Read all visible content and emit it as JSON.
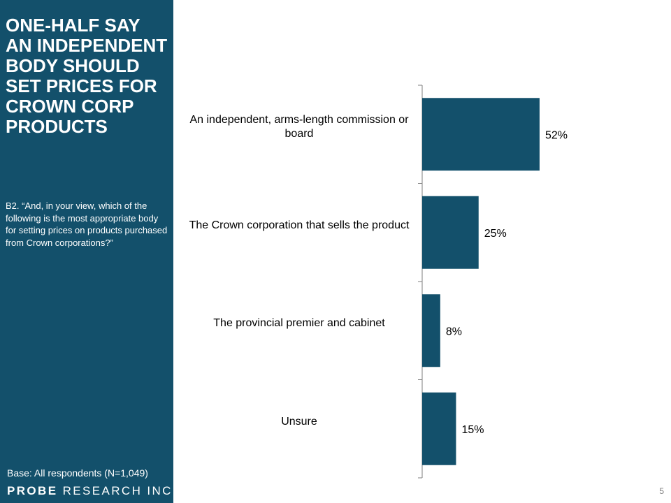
{
  "sidebar": {
    "headline": "ONE-HALF SAY AN INDEPENDENT BODY SHOULD SET PRICES FOR CROWN CORP PRODUCTS",
    "question": "B2. “And, in your view, which of the following is the most appropriate body for setting prices on products purchased from Crown corporations?”",
    "base": "Base: All respondents (N=1,049)",
    "logo_bold": "PROBE",
    "logo_light": "RESEARCH INC."
  },
  "page_number": "5",
  "colors": {
    "sidebar": "#13506b",
    "bar": "#13506b"
  },
  "chart_data": {
    "type": "bar",
    "orientation": "horizontal",
    "categories": [
      "An independent, arms-length commission or board",
      "The Crown corporation that sells the product",
      "The provincial premier and cabinet",
      "Unsure"
    ],
    "values": [
      52,
      25,
      8,
      15
    ],
    "value_labels": [
      "52%",
      "25%",
      "8%",
      "15%"
    ],
    "xlim": [
      0,
      100
    ],
    "unit": "%",
    "grid": false,
    "legend": "none"
  }
}
